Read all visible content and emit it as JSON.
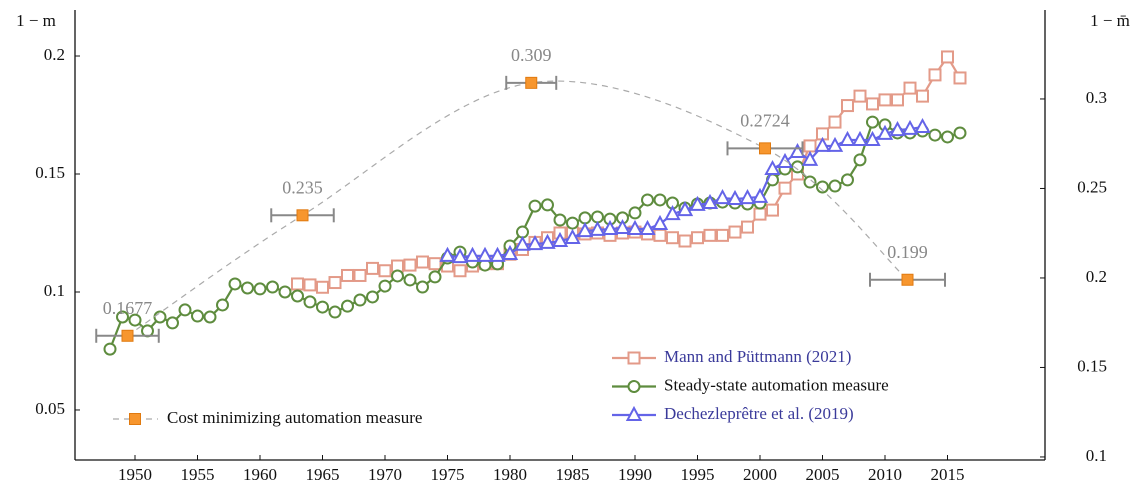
{
  "chart_data": {
    "type": "line",
    "ylabel": "1 − m",
    "y2label": "1 − m̄",
    "xlim": [
      1945.2,
      2022.8
    ],
    "ylim": [
      0.0288,
      0.2195
    ],
    "y2lim": [
      0.0983,
      0.3497
    ],
    "xticks": [
      1950,
      1955,
      1960,
      1965,
      1970,
      1975,
      1980,
      1985,
      1990,
      1995,
      2000,
      2005,
      2010,
      2015
    ],
    "yticks": [
      0.05,
      0.1,
      0.15,
      0.2
    ],
    "y2ticks": [
      0.1,
      0.15,
      0.2,
      0.25,
      0.3
    ],
    "series": [
      {
        "name": "Mann and Püttmann (2021)",
        "color": "#e39a88",
        "marker": "square",
        "x": [
          1963,
          1964,
          1965,
          1966,
          1967,
          1968,
          1969,
          1970,
          1971,
          1972,
          1973,
          1974,
          1975,
          1976,
          1977,
          1978,
          1979,
          1980,
          1981,
          1982,
          1983,
          1984,
          1985,
          1986,
          1987,
          1988,
          1989,
          1990,
          1991,
          1992,
          1993,
          1994,
          1995,
          1996,
          1997,
          1998,
          1999,
          2000,
          2001,
          2002,
          2003,
          2004,
          2005,
          2006,
          2007,
          2008,
          2009,
          2010,
          2011,
          2012,
          2013,
          2014,
          2015,
          2016
        ],
        "values": [
          0.1034,
          0.103,
          0.102,
          0.104,
          0.107,
          0.107,
          0.11,
          0.109,
          0.111,
          0.1114,
          0.1127,
          0.112,
          0.111,
          0.109,
          0.111,
          0.112,
          0.112,
          0.116,
          0.118,
          0.121,
          0.123,
          0.125,
          0.125,
          0.1246,
          0.125,
          0.124,
          0.125,
          0.1254,
          0.1246,
          0.124,
          0.123,
          0.1216,
          0.123,
          0.124,
          0.124,
          0.1254,
          0.1275,
          0.133,
          0.1347,
          0.144,
          0.15,
          0.1619,
          0.167,
          0.172,
          0.179,
          0.183,
          0.1797,
          0.1814,
          0.1814,
          0.1864,
          0.183,
          0.192,
          0.1996,
          0.1907
        ]
      },
      {
        "name": "Steady-state automation measure",
        "color": "#5e8c3e",
        "marker": "circle",
        "x": [
          1948,
          1949,
          1950,
          1951,
          1952,
          1953,
          1954,
          1955,
          1956,
          1957,
          1958,
          1959,
          1960,
          1961,
          1962,
          1963,
          1964,
          1965,
          1966,
          1967,
          1968,
          1969,
          1970,
          1971,
          1972,
          1973,
          1974,
          1975,
          1976,
          1977,
          1978,
          1979,
          1980,
          1981,
          1982,
          1983,
          1984,
          1985,
          1986,
          1987,
          1988,
          1989,
          1990,
          1991,
          1992,
          1993,
          1994,
          1995,
          1996,
          1997,
          1998,
          1999,
          2000,
          2001,
          2002,
          2003,
          2004,
          2005,
          2006,
          2007,
          2008,
          2009,
          2010,
          2011,
          2012,
          2013,
          2014,
          2015,
          2016
        ],
        "values": [
          0.0758,
          0.0894,
          0.0881,
          0.0835,
          0.0894,
          0.0869,
          0.0924,
          0.0898,
          0.0894,
          0.0945,
          0.1034,
          0.1017,
          0.1013,
          0.1021,
          0.1,
          0.0983,
          0.0958,
          0.0936,
          0.0915,
          0.094,
          0.0966,
          0.0979,
          0.1025,
          0.1068,
          0.1051,
          0.1021,
          0.1064,
          0.1144,
          0.1169,
          0.1127,
          0.1114,
          0.1119,
          0.1195,
          0.1254,
          0.1364,
          0.1369,
          0.1305,
          0.1292,
          0.1314,
          0.1318,
          0.1309,
          0.1314,
          0.1335,
          0.139,
          0.139,
          0.1377,
          0.1356,
          0.1373,
          0.1377,
          0.1381,
          0.1377,
          0.1373,
          0.1377,
          0.1475,
          0.1521,
          0.153,
          0.1466,
          0.1445,
          0.1449,
          0.1475,
          0.156,
          0.172,
          0.1708,
          0.1674,
          0.1674,
          0.1682,
          0.1665,
          0.1657,
          0.1674
        ]
      },
      {
        "name": "Dechezleprêtre et al. (2019)",
        "color": "#6464e8",
        "marker": "triangle",
        "x": [
          1975,
          1976,
          1977,
          1978,
          1979,
          1980,
          1981,
          1982,
          1983,
          1984,
          1985,
          1986,
          1987,
          1988,
          1989,
          1990,
          1991,
          1992,
          1993,
          1994,
          1995,
          1996,
          1997,
          1998,
          1999,
          2000,
          2001,
          2002,
          2003,
          2004,
          2005,
          2006,
          2007,
          2008,
          2009,
          2010,
          2011,
          2012,
          2013
        ],
        "values": [
          0.1153,
          0.1148,
          0.1153,
          0.1153,
          0.1153,
          0.1161,
          0.12,
          0.1203,
          0.1208,
          0.1216,
          0.1229,
          0.1258,
          0.1263,
          0.1267,
          0.1271,
          0.1267,
          0.1267,
          0.1288,
          0.133,
          0.1347,
          0.1369,
          0.1377,
          0.1398,
          0.1394,
          0.1398,
          0.1403,
          0.1521,
          0.1551,
          0.1593,
          0.156,
          0.1619,
          0.1619,
          0.1644,
          0.1644,
          0.1644,
          0.167,
          0.1686,
          0.1691,
          0.1699
        ]
      },
      {
        "name": "Cost minimizing automation measure",
        "color": "#f7962e",
        "marker": "square",
        "axis": "y2",
        "x": [
          1949.4,
          1963.4,
          1981.7,
          2000.4,
          2011.8
        ],
        "x_errors": [
          2.5,
          2.5,
          2,
          3,
          3
        ],
        "values": [
          0.1677,
          0.235,
          0.309,
          0.2724,
          0.199
        ]
      }
    ]
  }
}
